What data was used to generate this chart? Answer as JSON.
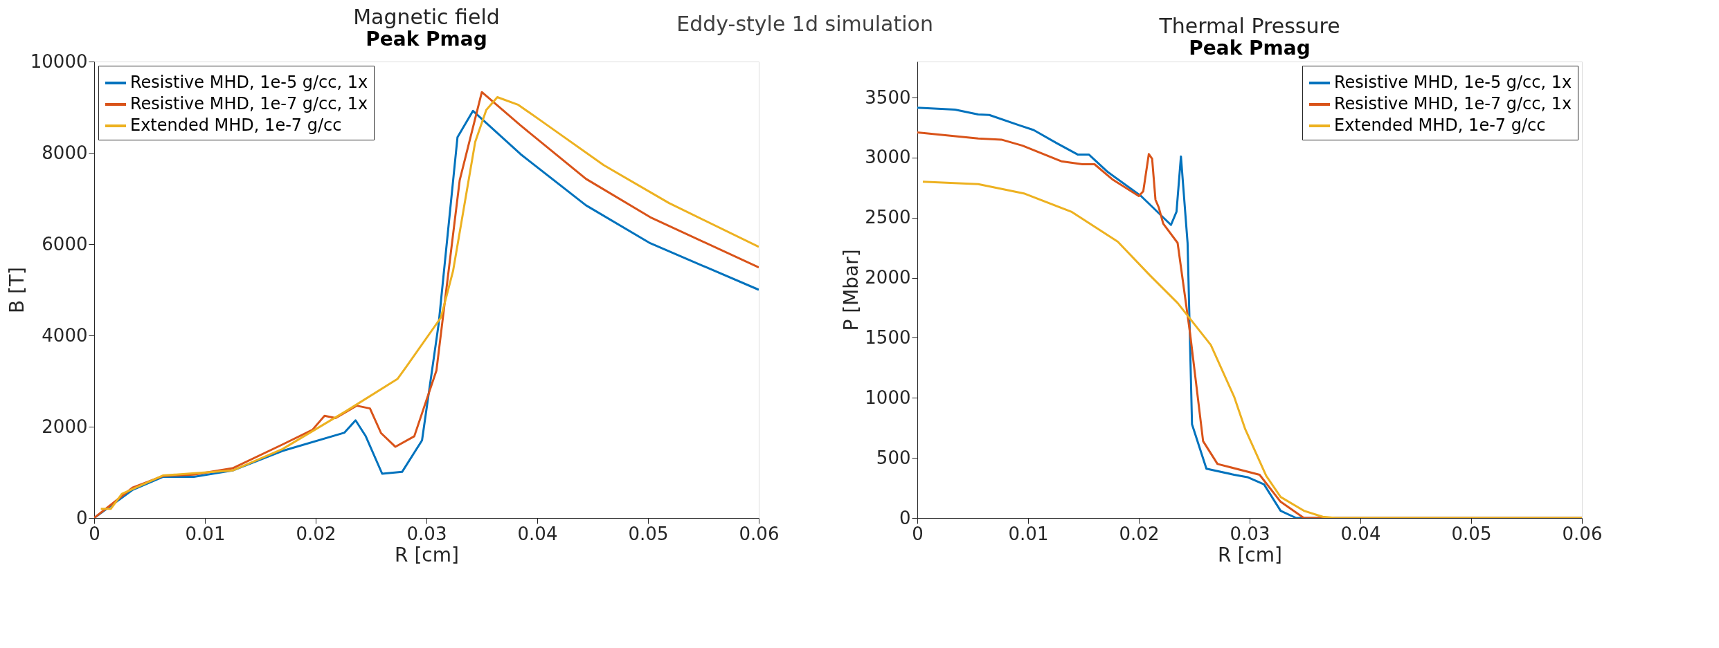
{
  "chart_data": [
    {
      "type": "line",
      "title": "Magnetic field",
      "subtitle": "Peak Pmag",
      "annotations": [
        "Eddy-style 1d simulation"
      ],
      "xlabel": "R [cm]",
      "ylabel": "B [T]",
      "xlim": [
        0,
        0.06
      ],
      "xticks": [
        0,
        0.01,
        0.02,
        0.03,
        0.04,
        0.05,
        0.06
      ],
      "ylim": [
        0,
        10000
      ],
      "yticks": [
        0,
        2000,
        4000,
        6000,
        8000,
        10000
      ],
      "grid": false,
      "legend": "top left",
      "line_style": "solid",
      "marker": "none",
      "series": [
        {
          "name": "Resistive MHD, 1e-5 g/cc, 1x",
          "color": "#0072bd",
          "x": [
            0,
            0.0035,
            0.0062,
            0.009,
            0.0125,
            0.017,
            0.0226,
            0.0236,
            0.0245,
            0.026,
            0.0278,
            0.0296,
            0.0311,
            0.0328,
            0.0342,
            0.0385,
            0.0444,
            0.0502,
            0.06
          ],
          "values": [
            0,
            620,
            900,
            900,
            1040,
            1470,
            1870,
            2140,
            1800,
            970,
            1010,
            1700,
            4250,
            8340,
            8920,
            7970,
            6850,
            6020,
            5000
          ]
        },
        {
          "name": "Resistive MHD, 1e-7 g/cc, 1x",
          "color": "#d95319",
          "x": [
            0,
            0.0035,
            0.0062,
            0.009,
            0.0125,
            0.017,
            0.0197,
            0.0208,
            0.0218,
            0.0237,
            0.0249,
            0.0259,
            0.0272,
            0.0289,
            0.0309,
            0.033,
            0.035,
            0.0385,
            0.0444,
            0.0502,
            0.06
          ],
          "values": [
            0,
            670,
            920,
            950,
            1090,
            1610,
            1930,
            2240,
            2190,
            2460,
            2400,
            1860,
            1560,
            1790,
            3230,
            7400,
            9330,
            8600,
            7430,
            6590,
            5490
          ]
        },
        {
          "name": "Extended MHD, 1e-7 g/cc",
          "color": "#edb120",
          "x": [
            0.0006,
            0.0015,
            0.0025,
            0.0062,
            0.0125,
            0.017,
            0.0228,
            0.0274,
            0.0282,
            0.0313,
            0.0324,
            0.0344,
            0.0354,
            0.0364,
            0.0383,
            0.0403,
            0.046,
            0.0519,
            0.06
          ],
          "values": [
            200,
            200,
            530,
            930,
            1040,
            1510,
            2350,
            3050,
            3320,
            4390,
            5410,
            8240,
            8940,
            9220,
            9050,
            8710,
            7730,
            6900,
            5940
          ]
        }
      ]
    },
    {
      "type": "line",
      "title": "Thermal Pressure",
      "subtitle": "Peak Pmag",
      "xlabel": "R [cm]",
      "ylabel": "P [Mbar]",
      "xlim": [
        0,
        0.06
      ],
      "xticks": [
        0,
        0.01,
        0.02,
        0.03,
        0.04,
        0.05,
        0.06
      ],
      "ylim": [
        0,
        3800
      ],
      "yticks": [
        0,
        500,
        1000,
        1500,
        2000,
        2500,
        3000,
        3500
      ],
      "grid": false,
      "legend": "top right",
      "line_style": "solid",
      "marker": "none",
      "series": [
        {
          "name": "Resistive MHD, 1e-5 g/cc, 1x",
          "color": "#0072bd",
          "x": [
            0,
            0.0034,
            0.0055,
            0.0065,
            0.0092,
            0.0105,
            0.0126,
            0.0145,
            0.0155,
            0.0172,
            0.0202,
            0.0229,
            0.0234,
            0.0238,
            0.0244,
            0.0248,
            0.0261,
            0.0286,
            0.0298,
            0.0313,
            0.0328,
            0.0342,
            0.06
          ],
          "values": [
            3415,
            3400,
            3360,
            3355,
            3270,
            3230,
            3120,
            3025,
            3025,
            2880,
            2680,
            2440,
            2550,
            3010,
            2290,
            780,
            410,
            360,
            340,
            280,
            60,
            0,
            0
          ]
        },
        {
          "name": "Resistive MHD, 1e-7 g/cc, 1x",
          "color": "#d95319",
          "x": [
            0,
            0.0055,
            0.0076,
            0.0095,
            0.013,
            0.0149,
            0.016,
            0.0176,
            0.02,
            0.0204,
            0.0209,
            0.0212,
            0.0215,
            0.0218,
            0.0222,
            0.0235,
            0.0246,
            0.0258,
            0.0271,
            0.0309,
            0.0328,
            0.0349,
            0.06
          ],
          "values": [
            3210,
            3160,
            3150,
            3100,
            2970,
            2945,
            2945,
            2820,
            2680,
            2720,
            3030,
            2990,
            2650,
            2585,
            2450,
            2290,
            1555,
            640,
            450,
            360,
            135,
            0,
            0
          ]
        },
        {
          "name": "Extended MHD, 1e-7 g/cc",
          "color": "#edb120",
          "x": [
            0.0005,
            0.0055,
            0.0097,
            0.0139,
            0.0181,
            0.021,
            0.0235,
            0.0265,
            0.0286,
            0.0296,
            0.0315,
            0.0328,
            0.0349,
            0.0366,
            0.0378,
            0.06
          ],
          "values": [
            2800,
            2780,
            2700,
            2550,
            2300,
            2020,
            1790,
            1440,
            1010,
            740,
            350,
            175,
            60,
            10,
            0,
            0
          ]
        }
      ]
    }
  ]
}
